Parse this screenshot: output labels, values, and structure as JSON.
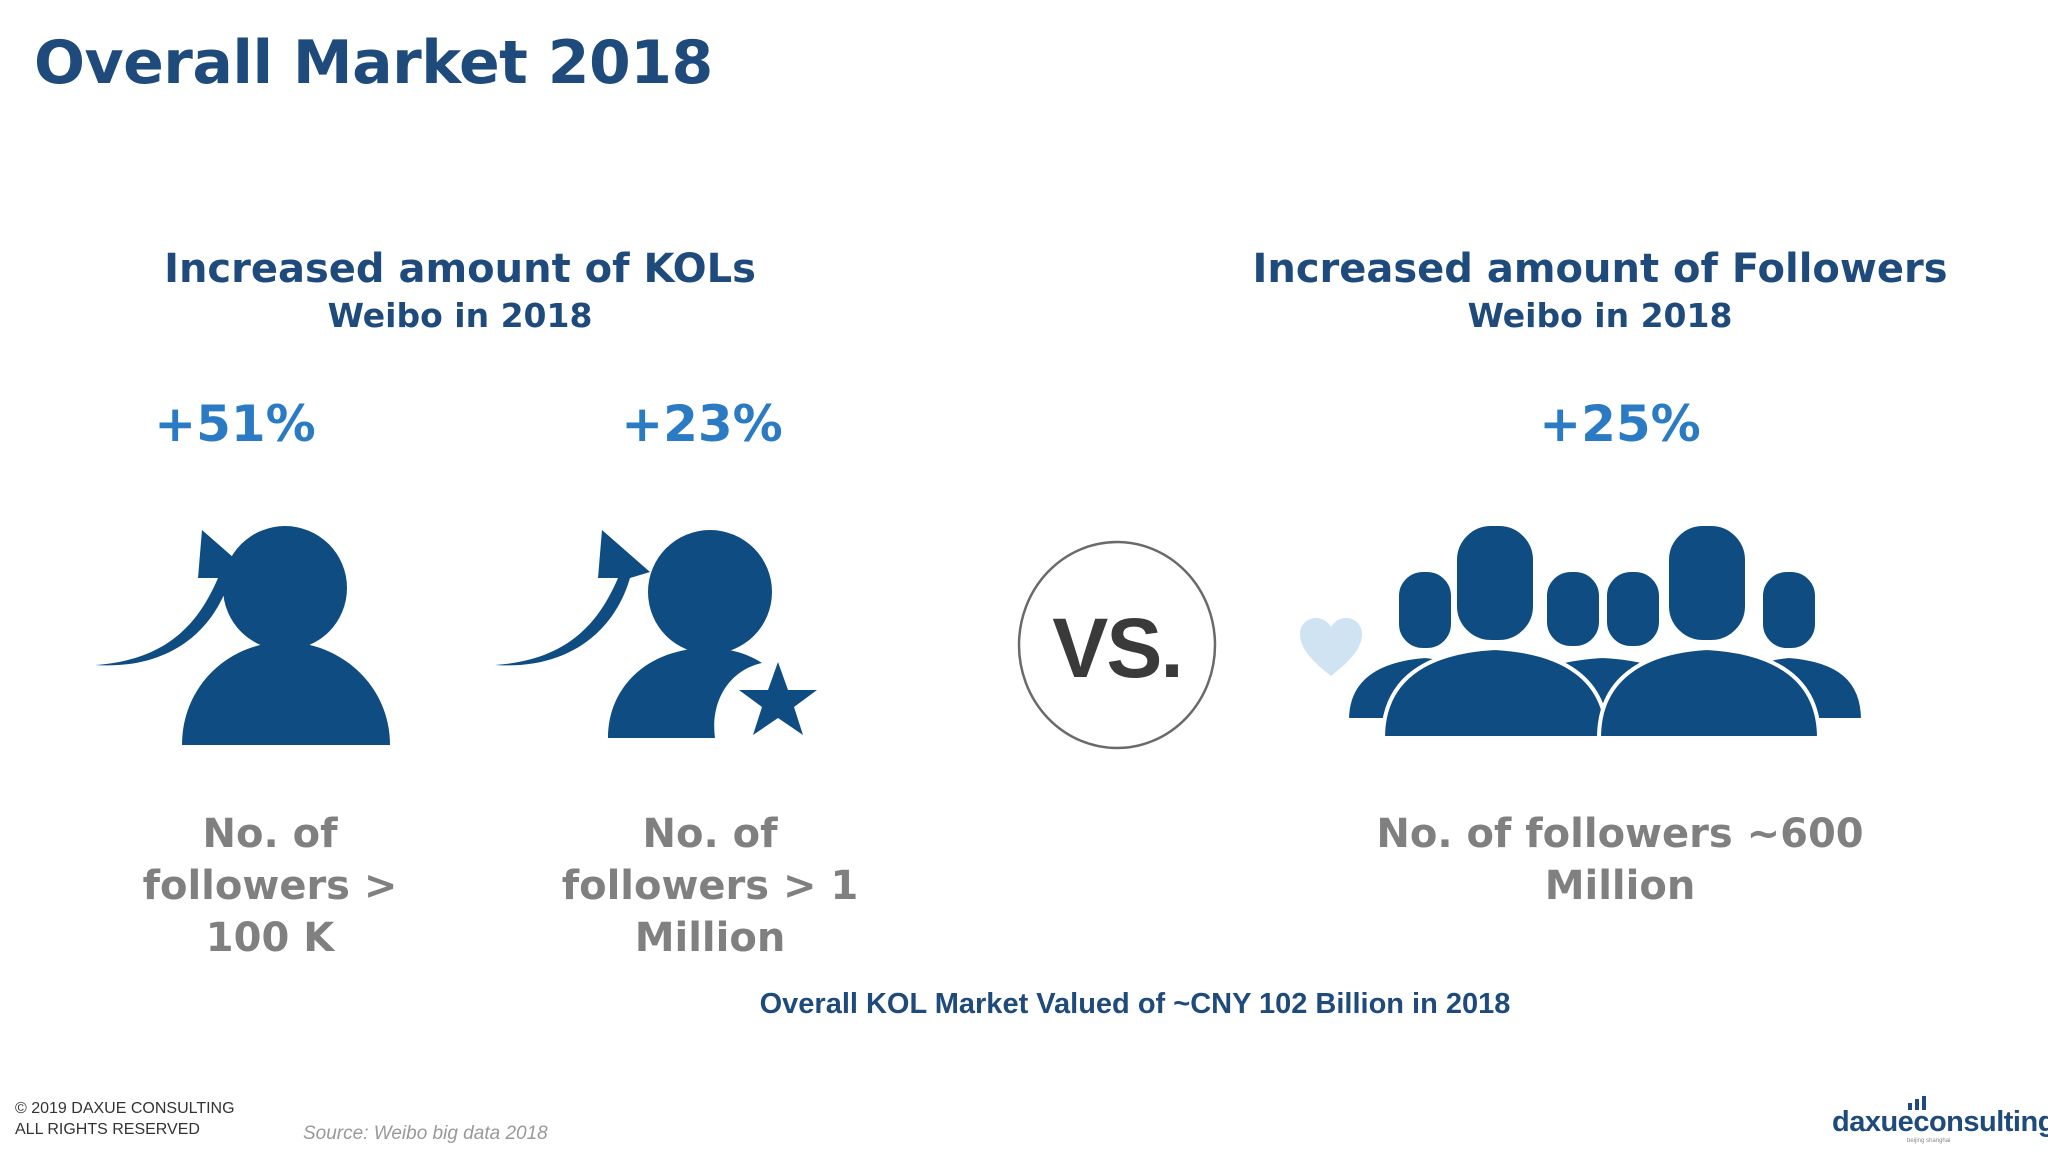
{
  "title": "Overall Market 2018",
  "left_section": {
    "heading": "Increased amount of KOLs",
    "subheading": "Weibo in 2018",
    "items": [
      {
        "percent": "+51%",
        "line1": "No. of",
        "line2": "followers >",
        "line3": "100 K",
        "icon": "person-growth-icon"
      },
      {
        "percent": "+23%",
        "line1": "No. of",
        "line2": "followers > 1",
        "line3": "Million",
        "icon": "star-person-growth-icon"
      }
    ]
  },
  "versus": "VS.",
  "right_section": {
    "heading": "Increased amount of Followers",
    "subheading": "Weibo in 2018",
    "percent": "+25%",
    "line1": "No. of followers ~600",
    "line2": "Million",
    "icon": "crowd-icon"
  },
  "summary": "Overall KOL Market Valued of ~CNY 102 Billion in 2018",
  "footer": {
    "copyright_line1": "© 2019 DAXUE CONSULTING",
    "copyright_line2": "ALL RIGHTS RESERVED",
    "source": "Source: Weibo big data 2018",
    "logo_text": "daxueconsulting",
    "logo_small": "beijing shanghai"
  },
  "colors": {
    "primary": "#1e4a7c",
    "accent": "#2a7bc4",
    "icon": "#0f4c81",
    "muted": "#808080",
    "heart": "#cfe3f3"
  }
}
